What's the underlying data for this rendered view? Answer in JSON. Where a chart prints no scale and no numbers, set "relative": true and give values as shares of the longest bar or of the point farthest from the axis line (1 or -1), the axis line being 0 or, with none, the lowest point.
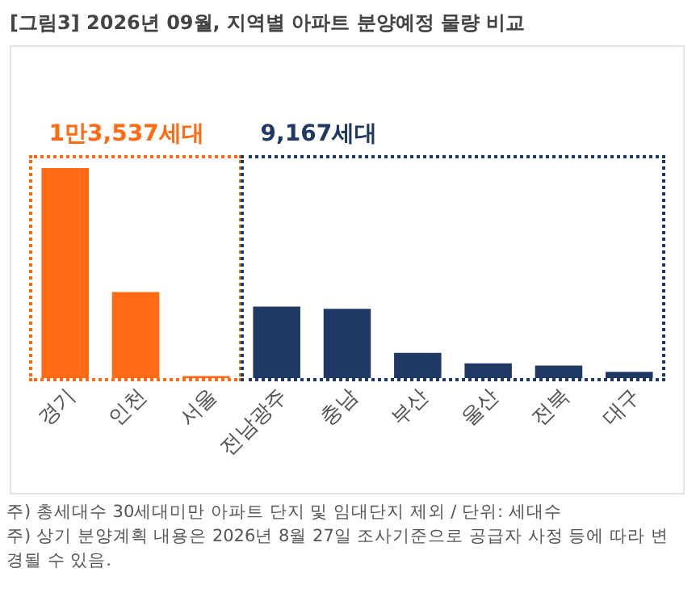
{
  "chart_data": {
    "type": "bar",
    "title": "[그림3] 2026년 09월, 지역별 아파트 분양예정 물량 비교",
    "relative": true,
    "categories": [
      "경기",
      "인천",
      "서울",
      "전남광주",
      "충남",
      "부산",
      "울산",
      "전북",
      "대구"
    ],
    "values": [
      1,
      0.41,
      0.01,
      0.34,
      0.33,
      0.12,
      0.07,
      0.06,
      0.03
    ],
    "colors": [
      "#ff6a13",
      "#ff6a13",
      "#ff6a13",
      "#1f3864",
      "#1f3864",
      "#1f3864",
      "#1f3864",
      "#1f3864",
      "#1f3864"
    ],
    "annotations": [
      "1만3,537세대",
      "9,167세대",
      "주) 총세대수 30세대미만 아파트  단지 및 임대단지 제외 / 단위: 세대수",
      "주) 상기 분양계획 내용은 2026년 8월 27일 조사기준으로 공급자 사정 등에 따라 변경될 수 있음."
    ]
  }
}
